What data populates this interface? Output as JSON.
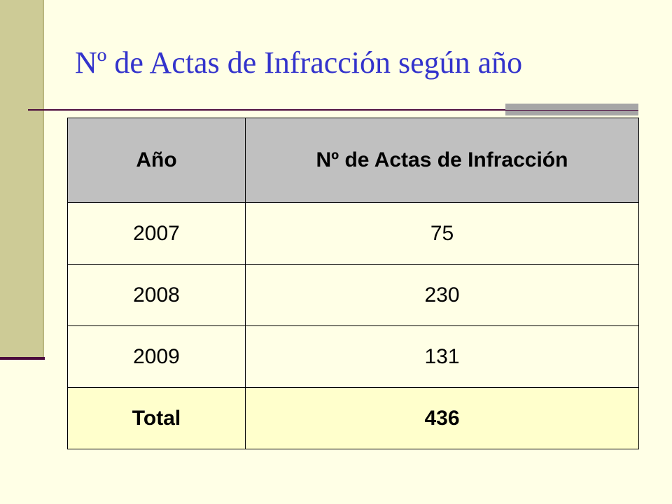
{
  "title": "Nº de Actas de Infracción según año",
  "table": {
    "header": [
      "Año",
      "Nº de Actas de Infracción"
    ],
    "rows": [
      [
        2007,
        75
      ],
      [
        2008,
        230
      ],
      [
        2009,
        131
      ]
    ],
    "total": [
      "Total",
      436
    ]
  }
}
